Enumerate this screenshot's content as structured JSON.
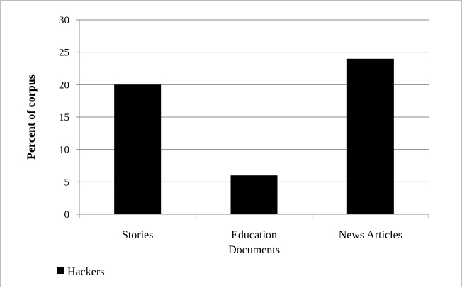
{
  "chart_data": {
    "type": "bar",
    "title": "",
    "xlabel": "",
    "ylabel": "Percent of corpus",
    "categories": [
      "Stories",
      "Education Documents",
      "News Articles"
    ],
    "category_lines": [
      [
        "Stories"
      ],
      [
        "Education",
        "Documents"
      ],
      [
        "News Articles"
      ]
    ],
    "series": [
      {
        "name": "Hackers",
        "values": [
          20,
          6,
          24
        ]
      }
    ],
    "ylim": [
      0,
      30
    ],
    "yticks": [
      0,
      5,
      10,
      15,
      20,
      25,
      30
    ],
    "grid": true,
    "legend_position": "bottom-left",
    "colors": {
      "bar": "#000000",
      "grid": "#8c8c8c",
      "axis": "#8c8c8c",
      "frame": "#bdbdbd"
    }
  }
}
